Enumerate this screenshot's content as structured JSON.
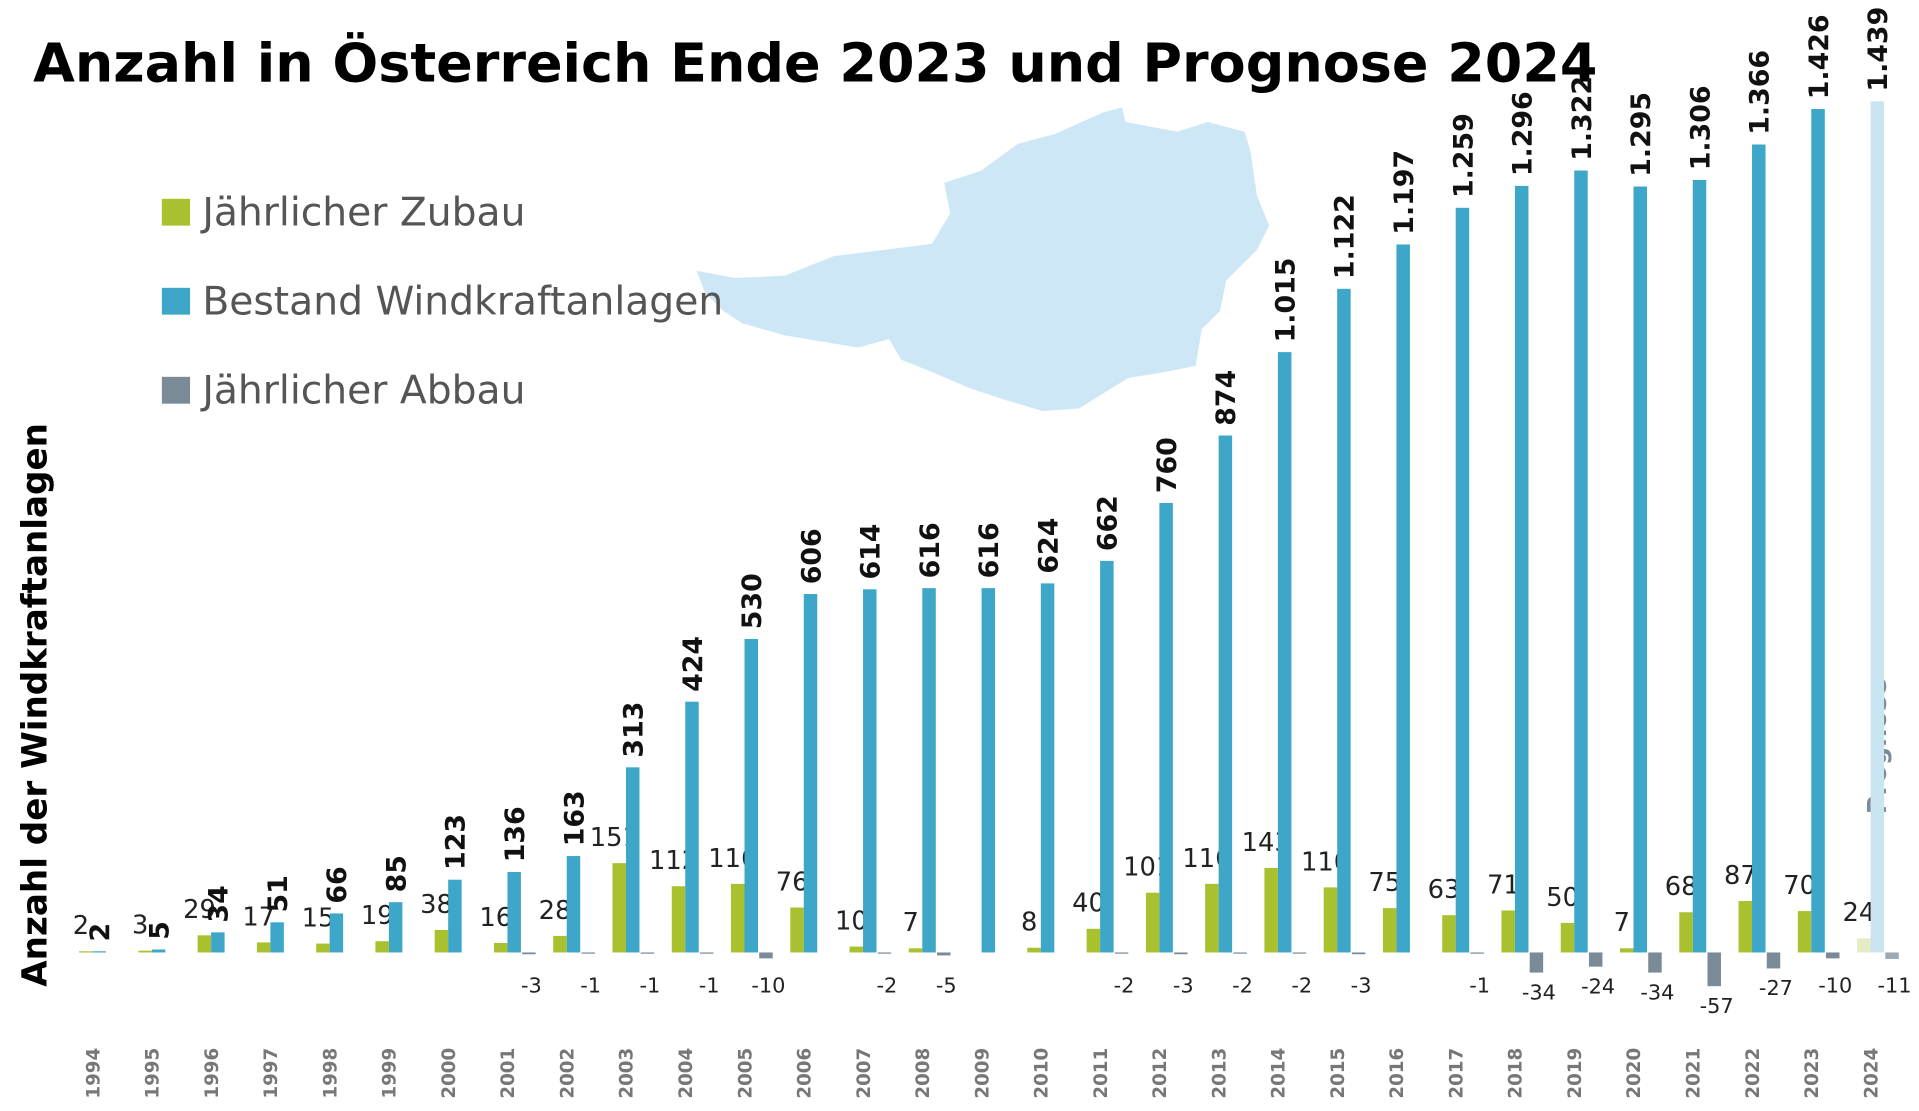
{
  "chart_data": {
    "type": "bar",
    "title": "Anzahl in Österreich Ende 2023 und Prognose 2024",
    "y_label": "Anzahl der Windkraftanlagen",
    "annotation": "Prognose",
    "categories": [
      "1994",
      "1995",
      "1996",
      "1997",
      "1998",
      "1999",
      "2000",
      "2001",
      "2002",
      "2003",
      "2004",
      "2005",
      "2006",
      "2007",
      "2008",
      "2009",
      "2010",
      "2011",
      "2012",
      "2013",
      "2014",
      "2015",
      "2016",
      "2017",
      "2018",
      "2019",
      "2020",
      "2021",
      "2022",
      "2023",
      "2024"
    ],
    "ylim": [
      -100,
      1500
    ],
    "series": [
      {
        "name": "Jährlicher Zubau",
        "color": "#a9c02f",
        "forecast_color": "#e4ecc6",
        "values": [
          2,
          3,
          29,
          17,
          15,
          19,
          38,
          16,
          28,
          151,
          112,
          116,
          76,
          10,
          7,
          null,
          8,
          40,
          101,
          116,
          143,
          110,
          75,
          63,
          71,
          50,
          7,
          68,
          87,
          70,
          24
        ]
      },
      {
        "name": "Bestand Windkraftanlagen",
        "color": "#3ea6c9",
        "forecast_color": "#c9e5f1",
        "values": [
          2,
          5,
          34,
          51,
          66,
          85,
          123,
          136,
          163,
          313,
          424,
          530,
          606,
          614,
          616,
          616,
          624,
          662,
          760,
          874,
          1015,
          1122,
          1197,
          1259,
          1296,
          1322,
          1295,
          1306,
          1366,
          1426,
          1439
        ],
        "value_labels": [
          "2",
          "5",
          "34",
          "51",
          "66",
          "85",
          "123",
          "136",
          "163",
          "313",
          "424",
          "530",
          "606",
          "614",
          "616",
          "616",
          "624",
          "662",
          "760",
          "874",
          "1.015",
          "1.122",
          "1.197",
          "1.259",
          "1.296",
          "1.322",
          "1.295",
          "1.306",
          "1.366",
          "1.426",
          "1.439"
        ]
      },
      {
        "name": "Jährlicher Abbau",
        "color": "#7a8b97",
        "forecast_color": "#9aa9b3",
        "values": [
          null,
          null,
          null,
          null,
          null,
          null,
          null,
          -3,
          -1,
          -1,
          -1,
          -10,
          null,
          -2,
          -5,
          null,
          null,
          -2,
          -3,
          -2,
          -2,
          -3,
          null,
          -1,
          -34,
          -24,
          -34,
          -57,
          -27,
          -10,
          -11
        ]
      }
    ]
  }
}
